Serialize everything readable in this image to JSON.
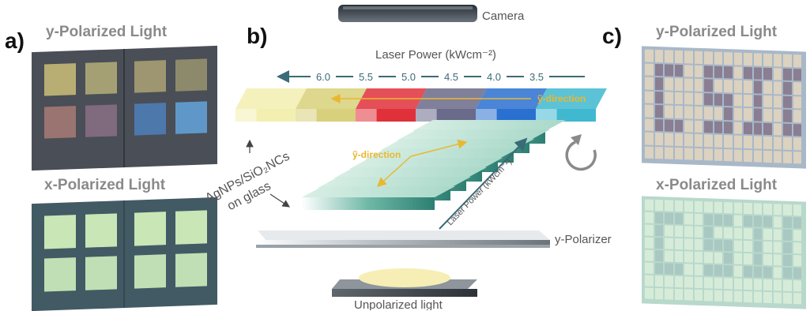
{
  "panel_a": {
    "letter": "a)",
    "top_title": "y-Polarized Light",
    "bottom_title": "x-Polarized Light",
    "top_square_colors": [
      "#b8ae74",
      "#a4a074",
      "#9e9670",
      "#8d8a6c",
      "#9a7470",
      "#806a7e",
      "#4d78ac",
      "#5f98c8"
    ],
    "bottom_square_colors": [
      "#c8e6b6",
      "#c8e6b6",
      "#c8e6b6",
      "#c8e6b6",
      "#c0dfb4",
      "#c0dfb4",
      "#c0dfb4",
      "#c0dfb4"
    ]
  },
  "panel_b": {
    "letter": "b)",
    "camera_label": "Camera",
    "laser_power_label": "Laser Power (kWcm⁻²)",
    "power_values": [
      "6.0",
      "5.5",
      "5.0",
      "4.5",
      "4.0",
      "3.5"
    ],
    "top_y_direction": "ỹ-direction",
    "mid_y_direction": "ỹ-direction",
    "sample_label_line1": "AgNPs/SiO₂NCs",
    "sample_label_line2": "on glass",
    "diagonal_laser_label": "Laser Power (kWcm⁻²)",
    "polarizer_label": "y-Polarizer",
    "light_label": "Unpolarized light",
    "strip_colors": [
      "#f3efb0",
      "#d8d07a",
      "#e0303a",
      "#6a6a8a",
      "#2a70d0",
      "#40b8d0"
    ],
    "accent_teal": "#3a6b78",
    "accent_yellow": "#e8b830"
  },
  "panel_c": {
    "letter": "c)",
    "top_title": "y-Polarized Light",
    "bottom_title": "x-Polarized Light"
  }
}
